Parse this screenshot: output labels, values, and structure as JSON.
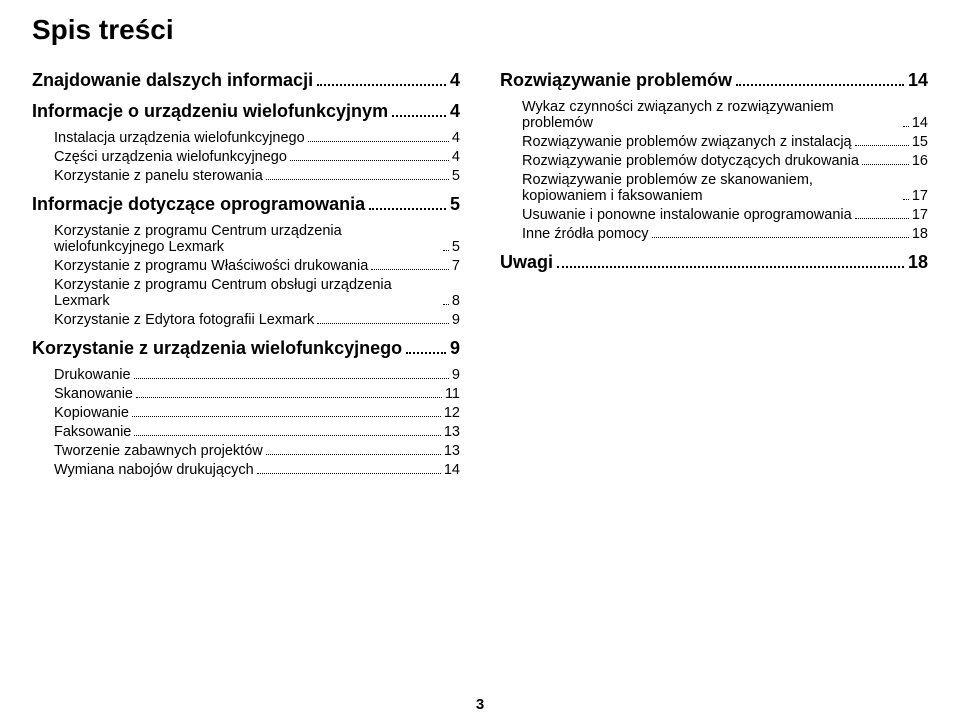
{
  "title": "Spis treści",
  "page_number": "3",
  "columns": {
    "left": [
      {
        "type": "h1",
        "label": "Znajdowanie dalszych informacji",
        "page": "4"
      },
      {
        "type": "h1",
        "label": "Informacje o urządzeniu wielofunkcyjnym",
        "page": "4"
      },
      {
        "type": "entry",
        "label": "Instalacja urządzenia wielofunkcyjnego",
        "page": "4"
      },
      {
        "type": "entry",
        "label": "Części urządzenia wielofunkcyjnego",
        "page": "4"
      },
      {
        "type": "entry",
        "label": "Korzystanie z panelu sterowania",
        "page": "5"
      },
      {
        "type": "h1",
        "label": "Informacje dotyczące oprogramowania",
        "page": "5"
      },
      {
        "type": "entry",
        "label": "Korzystanie z programu Centrum urządzenia wielofunkcyjnego Lexmark",
        "page": "5"
      },
      {
        "type": "entry",
        "label": "Korzystanie z programu Właściwości drukowania",
        "page": "7"
      },
      {
        "type": "entry",
        "label": "Korzystanie z programu Centrum obsługi urządzenia Lexmark",
        "page": "8"
      },
      {
        "type": "entry",
        "label": "Korzystanie z Edytora fotografii Lexmark",
        "page": "9"
      },
      {
        "type": "h1",
        "label": "Korzystanie z urządzenia wielofunkcyjnego",
        "page": "9"
      },
      {
        "type": "entry",
        "label": "Drukowanie",
        "page": "9"
      },
      {
        "type": "entry",
        "label": "Skanowanie",
        "page": "11"
      },
      {
        "type": "entry",
        "label": "Kopiowanie",
        "page": "12"
      },
      {
        "type": "entry",
        "label": "Faksowanie",
        "page": "13"
      },
      {
        "type": "entry",
        "label": "Tworzenie zabawnych projektów",
        "page": "13"
      },
      {
        "type": "entry",
        "label": "Wymiana nabojów drukujących",
        "page": "14"
      }
    ],
    "right": [
      {
        "type": "h1",
        "label": "Rozwiązywanie problemów",
        "page": "14"
      },
      {
        "type": "entry",
        "label": "Wykaz czynności związanych z rozwiązywaniem problemów",
        "page": "14"
      },
      {
        "type": "entry",
        "label": "Rozwiązywanie problemów związanych z instalacją",
        "page": "15"
      },
      {
        "type": "entry",
        "label": "Rozwiązywanie problemów dotyczących drukowania",
        "page": "16"
      },
      {
        "type": "entry",
        "label": "Rozwiązywanie problemów ze skanowaniem, kopiowaniem i faksowaniem",
        "page": "17"
      },
      {
        "type": "entry",
        "label": "Usuwanie i ponowne instalowanie oprogramowania",
        "page": "17"
      },
      {
        "type": "entry",
        "label": "Inne źródła pomocy",
        "page": "18"
      },
      {
        "type": "h1",
        "label": "Uwagi",
        "page": "18"
      }
    ]
  }
}
